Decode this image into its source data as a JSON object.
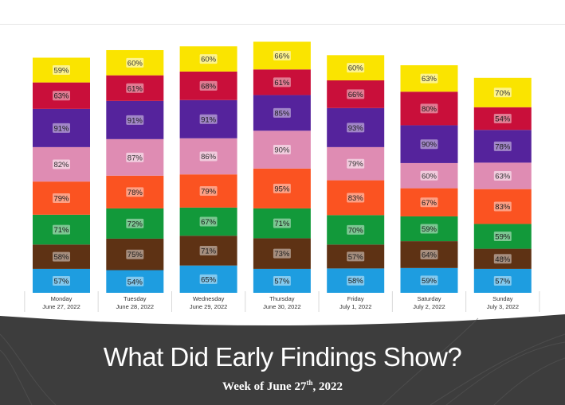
{
  "slide": {
    "title": "What Did Early Findings Show?",
    "subtitle_prefix": "Week of June 27",
    "subtitle_sup": "th",
    "subtitle_suffix": ", 2022"
  },
  "colors": {
    "background_band": "#3d3d3d",
    "text_light": "#ffffff"
  },
  "chart_data": {
    "type": "bar",
    "stacked": true,
    "title": "",
    "xlabel": "",
    "ylabel": "",
    "categories": [
      {
        "day": "Monday",
        "date": "June 27, 2022"
      },
      {
        "day": "Tuesday",
        "date": "June 28, 2022"
      },
      {
        "day": "Wednesday",
        "date": "June 29, 2022"
      },
      {
        "day": "Thursday",
        "date": "June 30, 2022"
      },
      {
        "day": "Friday",
        "date": "July 1, 2022"
      },
      {
        "day": "Saturday",
        "date": "July 2, 2022"
      },
      {
        "day": "Sunday",
        "date": "July 3, 2022"
      }
    ],
    "series": [
      {
        "name": "blue",
        "color": "#1e9de0",
        "values": [
          57,
          54,
          65,
          57,
          58,
          59,
          57
        ]
      },
      {
        "name": "brown",
        "color": "#5e3214",
        "values": [
          58,
          75,
          71,
          73,
          57,
          64,
          48
        ]
      },
      {
        "name": "green",
        "color": "#12993a",
        "values": [
          71,
          72,
          67,
          71,
          70,
          59,
          59
        ]
      },
      {
        "name": "orange",
        "color": "#fb5321",
        "values": [
          79,
          78,
          79,
          95,
          83,
          67,
          83
        ]
      },
      {
        "name": "pink",
        "color": "#df8cb3",
        "values": [
          82,
          87,
          86,
          90,
          79,
          60,
          63
        ]
      },
      {
        "name": "purple",
        "color": "#55239c",
        "values": [
          91,
          91,
          91,
          85,
          93,
          90,
          78
        ]
      },
      {
        "name": "red",
        "color": "#c90f3a",
        "values": [
          63,
          61,
          68,
          61,
          66,
          80,
          54
        ]
      },
      {
        "name": "yellow",
        "color": "#fae400",
        "values": [
          59,
          60,
          60,
          66,
          60,
          63,
          70
        ]
      }
    ],
    "value_suffix": "%",
    "grid": false,
    "legend": "none"
  }
}
